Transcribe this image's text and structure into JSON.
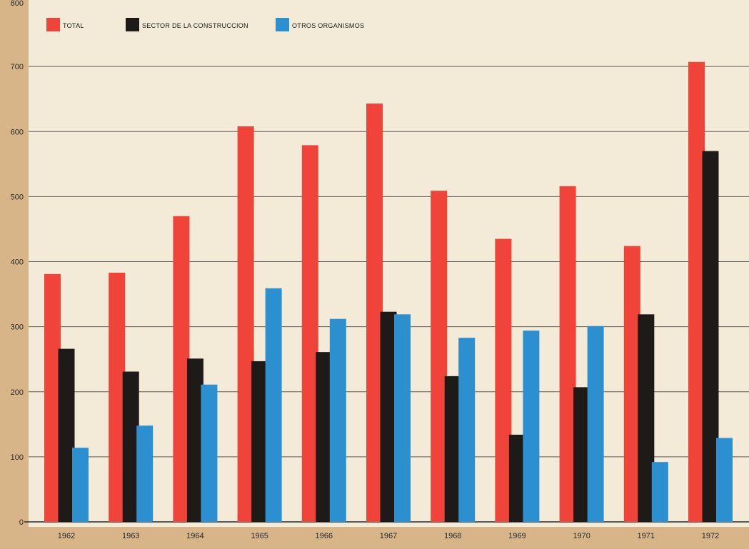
{
  "chart_data": {
    "type": "bar",
    "categories": [
      "1962",
      "1963",
      "1964",
      "1965",
      "1966",
      "1967",
      "1968",
      "1969",
      "1970",
      "1971",
      "1972"
    ],
    "series": [
      {
        "name": "TOTAL",
        "color": "#f0443a",
        "values": [
          381,
          383,
          470,
          608,
          579,
          643,
          509,
          435,
          516,
          424,
          707
        ]
      },
      {
        "name": "SECTOR DE LA CONSTRUCCION",
        "color": "#1e1a18",
        "values": [
          266,
          231,
          251,
          247,
          261,
          323,
          224,
          134,
          207,
          319,
          570
        ]
      },
      {
        "name": "OTROS ORGANISMOS",
        "color": "#2b8fd0",
        "values": [
          114,
          148,
          211,
          359,
          312,
          319,
          283,
          294,
          301,
          92,
          129
        ]
      }
    ],
    "y_ticks": [
      0,
      100,
      200,
      300,
      400,
      500,
      600,
      700,
      800
    ],
    "ylim": [
      0,
      800
    ],
    "grid": true,
    "legend_position": "top-left",
    "title": "",
    "xlabel": "",
    "ylabel": "",
    "colors": {
      "plot_background": "#f3ead7",
      "frame": "#d8b489",
      "gridline": "#2a2a2a"
    }
  }
}
